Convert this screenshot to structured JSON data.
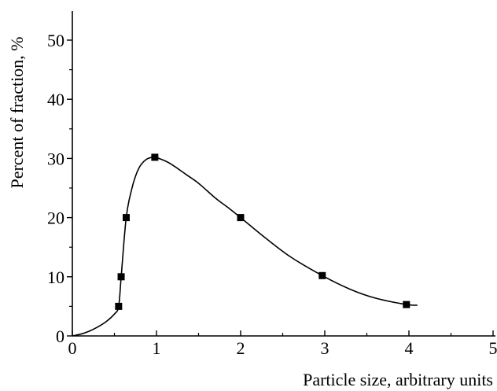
{
  "chart_data": {
    "type": "line",
    "title": "",
    "xlabel": "Particle size, arbitrary units",
    "ylabel": "Percent of fraction, %",
    "xlim": [
      0,
      5
    ],
    "ylim": [
      0,
      55
    ],
    "x_ticks": [
      0,
      1,
      2,
      3,
      4,
      5
    ],
    "x_tick_labels": [
      "0",
      "1",
      "2",
      "3",
      "4",
      "5"
    ],
    "y_ticks": [
      0,
      10,
      20,
      30,
      40,
      50
    ],
    "y_tick_labels": [
      "0",
      "10",
      "20",
      "30",
      "40",
      "50"
    ],
    "grid": false,
    "legend": "none",
    "series": [
      {
        "marker": "square",
        "x": [
          0.55,
          0.58,
          0.64,
          0.98,
          2.0,
          2.97,
          3.97
        ],
        "y": [
          5,
          10,
          20,
          30.2,
          20,
          10.2,
          5.3
        ]
      }
    ],
    "smooth_curve": {
      "x": [
        0,
        0.1,
        0.2,
        0.3,
        0.4,
        0.5,
        0.55,
        0.58,
        0.64,
        0.7,
        0.75,
        0.8,
        0.85,
        0.9,
        0.98,
        1.1,
        1.2,
        1.35,
        1.5,
        1.7,
        1.85,
        2.0,
        2.3,
        2.6,
        2.97,
        3.3,
        3.6,
        3.97,
        4.1
      ],
      "y": [
        0,
        0.3,
        0.8,
        1.5,
        2.4,
        3.7,
        5,
        10,
        20,
        24.5,
        27,
        28.6,
        29.5,
        30,
        30.2,
        29.6,
        28.8,
        27.3,
        25.8,
        23.3,
        21.7,
        20,
        16.5,
        13.3,
        10.2,
        7.9,
        6.4,
        5.3,
        5.2
      ]
    }
  }
}
